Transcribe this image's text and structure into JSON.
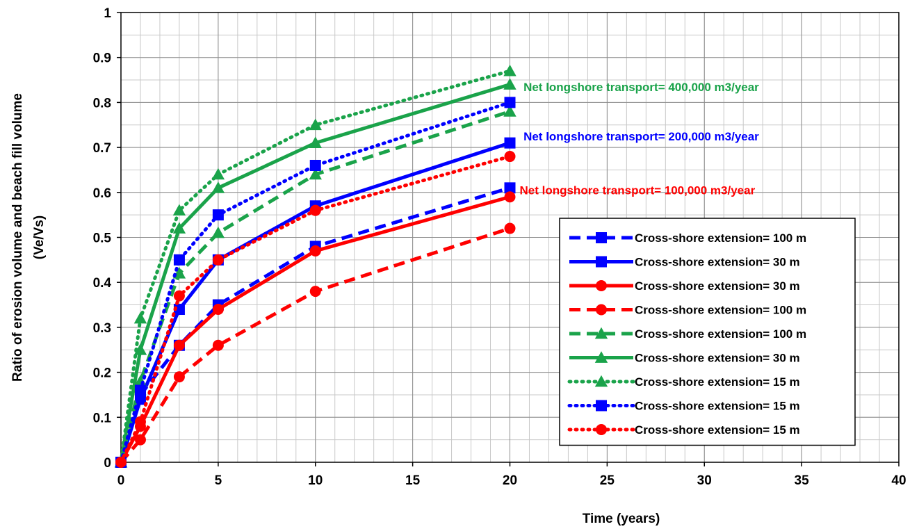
{
  "chart_data": {
    "type": "line",
    "title": "",
    "xlabel": "Time (years)",
    "ylabel_line1": "Ratio of  erosion volume and beach fill volume",
    "ylabel_line2": "(Ve/Vs)",
    "xlim": [
      0,
      40
    ],
    "ylim": [
      0,
      1
    ],
    "x_major_ticks": [
      0,
      5,
      10,
      15,
      20,
      25,
      30,
      35,
      40
    ],
    "x_minor_step": 1,
    "y_major_ticks": [
      0,
      0.1,
      0.2,
      0.3,
      0.4,
      0.5,
      0.6,
      0.7,
      0.8,
      0.9,
      1
    ],
    "y_minor_step": 0.05,
    "x_tick_labels": [
      "0",
      "5",
      "10",
      "15",
      "20",
      "25",
      "30",
      "35",
      "40"
    ],
    "y_tick_labels": [
      "0",
      "0.1",
      "0.2",
      "0.3",
      "0.4",
      "0.5",
      "0.6",
      "0.7",
      "0.8",
      "0.9",
      "1"
    ],
    "grid": true,
    "legend_position": "right",
    "x": [
      0,
      1,
      3,
      5,
      10,
      20
    ],
    "series": [
      {
        "name": "Cross-shore extension= 100 m",
        "color": "#0000ff",
        "style": "dashed",
        "marker": "square",
        "values": [
          0,
          0.15,
          0.26,
          0.35,
          0.48,
          0.61
        ]
      },
      {
        "name": "Cross-shore extension= 30 m",
        "color": "#0000ff",
        "style": "solid",
        "marker": "square",
        "values": [
          0,
          0.14,
          0.34,
          0.45,
          0.57,
          0.71
        ]
      },
      {
        "name": "Cross-shore extension= 30 m",
        "color": "#ff0000",
        "style": "solid",
        "marker": "circle",
        "values": [
          0,
          0.08,
          0.26,
          0.34,
          0.47,
          0.59
        ]
      },
      {
        "name": "Cross-shore extension= 100 m",
        "color": "#ff0000",
        "style": "dashed",
        "marker": "circle",
        "values": [
          0,
          0.05,
          0.19,
          0.26,
          0.38,
          0.52
        ]
      },
      {
        "name": "Cross-shore extension= 100 m",
        "color": "#1aa34a",
        "style": "dashed",
        "marker": "triangle",
        "values": [
          0,
          0.18,
          0.42,
          0.51,
          0.64,
          0.78
        ]
      },
      {
        "name": "Cross-shore extension= 30 m",
        "color": "#1aa34a",
        "style": "solid",
        "marker": "triangle",
        "values": [
          0,
          0.25,
          0.52,
          0.61,
          0.71,
          0.84
        ]
      },
      {
        "name": "Cross-shore extension= 15 m",
        "color": "#1aa34a",
        "style": "dotted",
        "marker": "triangle",
        "values": [
          0,
          0.32,
          0.56,
          0.64,
          0.75,
          0.87
        ]
      },
      {
        "name": "Cross-shore extension= 15 m",
        "color": "#0000ff",
        "style": "dotted",
        "marker": "square",
        "values": [
          0,
          0.16,
          0.45,
          0.55,
          0.66,
          0.8
        ]
      },
      {
        "name": "Cross-shore extension= 15 m",
        "color": "#ff0000",
        "style": "dotted",
        "marker": "circle",
        "values": [
          0,
          0.09,
          0.37,
          0.45,
          0.56,
          0.68
        ]
      }
    ],
    "annotations": [
      {
        "text": "Net longshore transport= 400,000 m3/year",
        "color": "#1aa34a",
        "x": 20.7,
        "y": 0.835
      },
      {
        "text": "Net longshore transport= 200,000 m3/year",
        "color": "#0000ff",
        "x": 20.7,
        "y": 0.725
      },
      {
        "text": "Net longshore transport= 100,000 m3/year",
        "color": "#ff0000",
        "x": 20.5,
        "y": 0.605
      }
    ]
  }
}
